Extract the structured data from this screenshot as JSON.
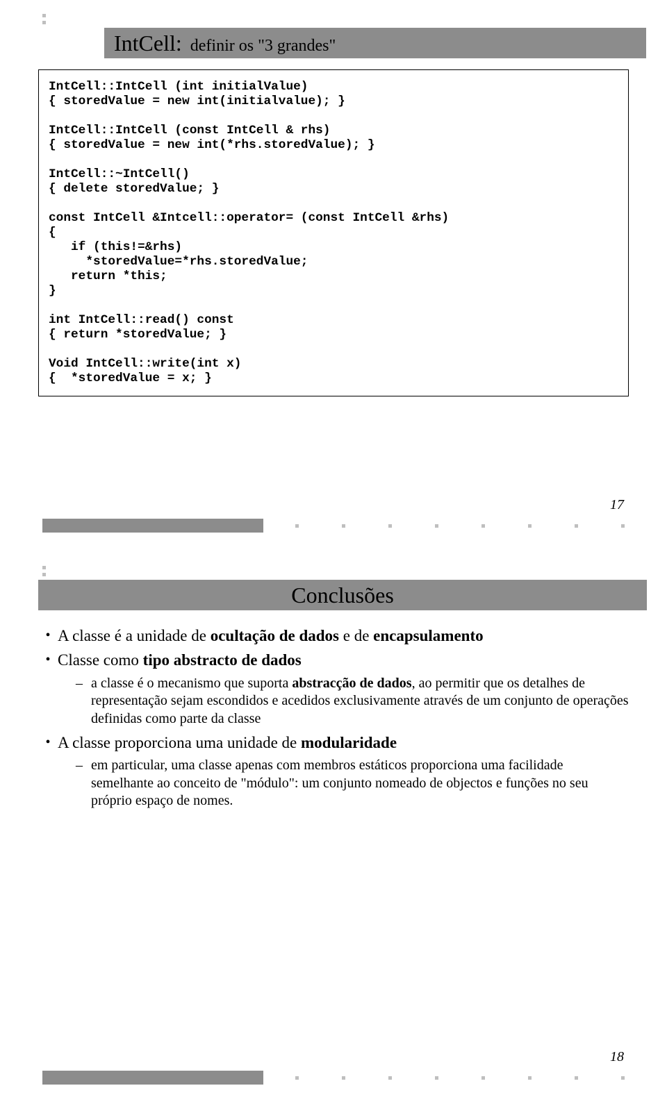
{
  "slide1": {
    "title_main": "IntCell:",
    "title_sub": "definir os \"3 grandes\"",
    "code": "IntCell::IntCell (int initialValue)\n{ storedValue = new int(initialvalue); }\n\nIntCell::IntCell (const IntCell & rhs)\n{ storedValue = new int(*rhs.storedValue); }\n\nIntCell::~IntCell()\n{ delete storedValue; }\n\nconst IntCell &Intcell::operator= (const IntCell &rhs)\n{\n   if (this!=&rhs)\n     *storedValue=*rhs.storedValue;\n   return *this;\n}\n\nint IntCell::read() const\n{ return *storedValue; }\n\nVoid IntCell::write(int x)\n{  *storedValue = x; }",
    "pagenum": "17"
  },
  "slide2": {
    "title": "Conclusões",
    "pagenum": "18",
    "b1_pre": "A classe é a unidade de ",
    "b1_bold1": "ocultação de dados",
    "b1_mid": " e de ",
    "b1_bold2": "encapsulamento",
    "b2_pre": "Classe como ",
    "b2_bold": "tipo abstracto de dados",
    "b2a_pre": "a classe é o mecanismo que suporta ",
    "b2a_bold": "abstracção de dados",
    "b2a_post": ", ao permitir que os detalhes de representação sejam escondidos e acedidos exclusivamente através de um conjunto de operações definidas como parte da classe",
    "b3_pre": "A classe proporciona uma unidade de ",
    "b3_bold": "modularidade",
    "b3a": "em particular, uma classe apenas com membros estáticos proporciona uma facilidade semelhante ao conceito de \"módulo\": um conjunto nomeado de objectos e funções no seu próprio espaço de nomes."
  },
  "colors": {
    "bar_bg": "#8c8c8c",
    "dot": "#bfbfbf",
    "text": "#000000"
  }
}
